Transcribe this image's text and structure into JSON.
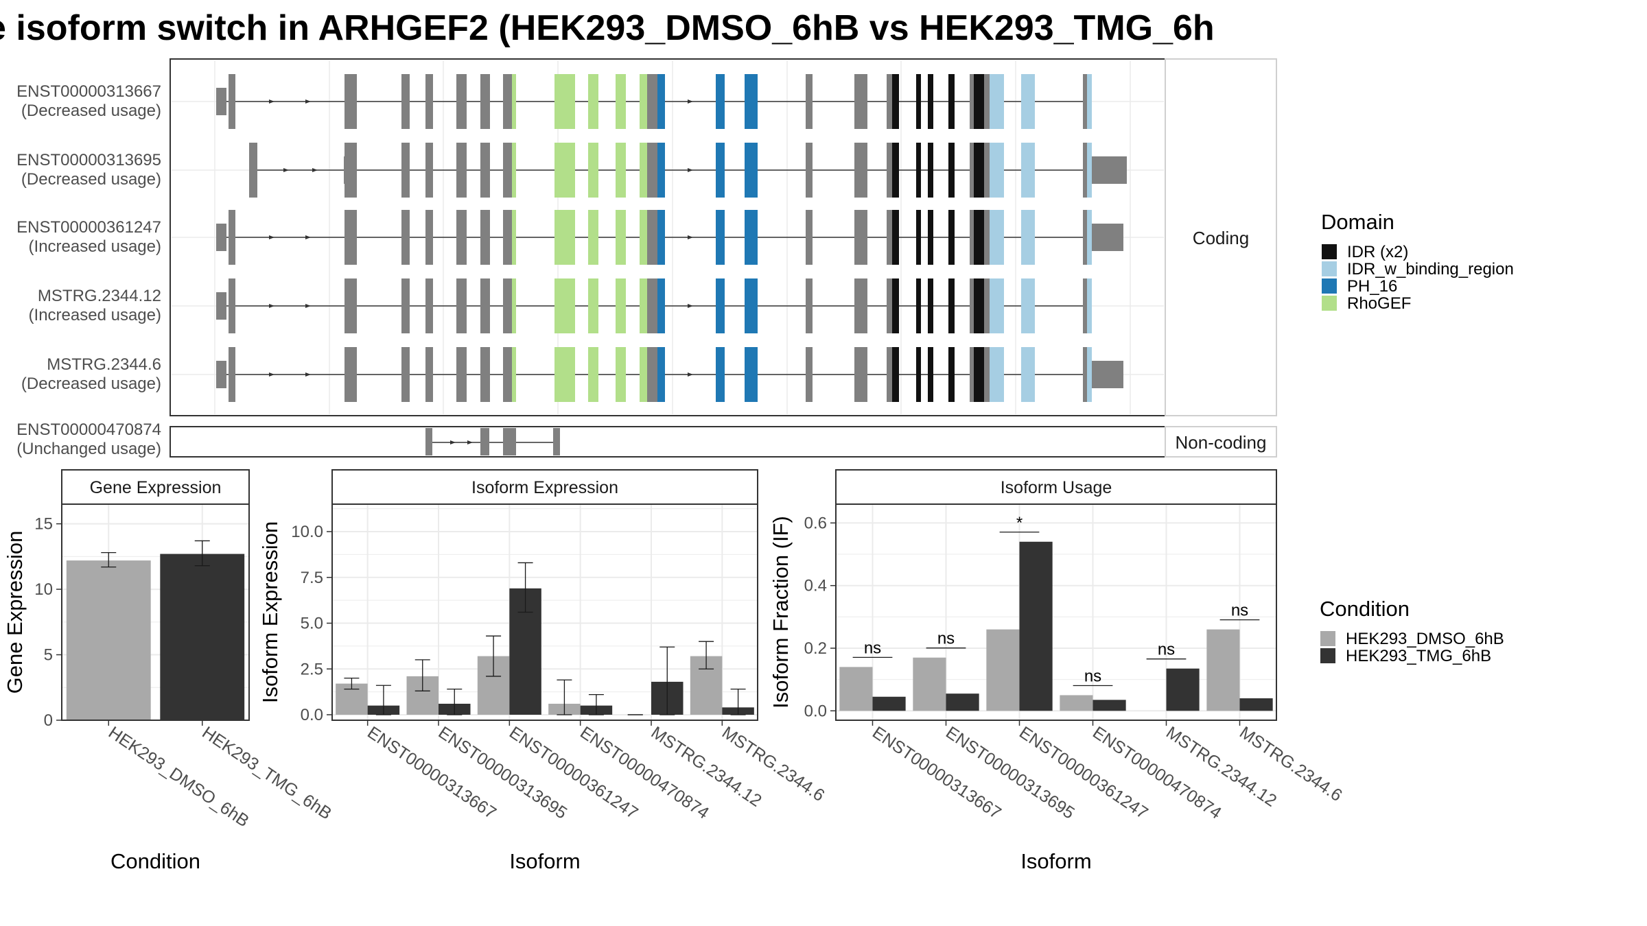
{
  "title": "e isoform switch in ARHGEF2 (HEK293_DMSO_6hB vs HEK293_TMG_6h",
  "colors": {
    "exon": "#808080",
    "IDR (x2)": "#111111",
    "IDR_w_binding_region": "#a6cee3",
    "PH_16": "#1f78b4",
    "RhoGEF": "#b2df8a",
    "HEK293_DMSO_6hB": "#a9a9a9",
    "HEK293_TMG_6hB": "#333333"
  },
  "transcripts": [
    {
      "id": "ENST00000313667",
      "usage": "(Decreased usage)",
      "group": "coding"
    },
    {
      "id": "ENST00000313695",
      "usage": "(Decreased usage)",
      "group": "coding"
    },
    {
      "id": "ENST00000361247",
      "usage": "(Increased usage)",
      "group": "coding"
    },
    {
      "id": "MSTRG.2344.12",
      "usage": "(Increased usage)",
      "group": "coding"
    },
    {
      "id": "MSTRG.2344.6",
      "usage": "(Decreased usage)",
      "group": "coding"
    },
    {
      "id": "ENST00000470874",
      "usage": "(Unchanged usage)",
      "group": "noncoding"
    }
  ],
  "strips": {
    "coding": "Coding",
    "noncoding": "Non-coding"
  },
  "legend_domain": {
    "title": "Domain",
    "items": [
      "IDR (x2)",
      "IDR_w_binding_region",
      "PH_16",
      "RhoGEF"
    ]
  },
  "legend_condition": {
    "title": "Condition",
    "items": [
      "HEK293_DMSO_6hB",
      "HEK293_TMG_6hB"
    ]
  },
  "chart_data": [
    {
      "type": "bar",
      "title": "Gene Expression",
      "xlabel": "Condition",
      "ylabel": "Gene Expression",
      "ylim": [
        0,
        16.5
      ],
      "yticks": [
        0,
        5,
        10,
        15
      ],
      "categories": [
        "HEK293_DMSO_6hB",
        "HEK293_TMG_6hB"
      ],
      "values": [
        12.2,
        12.7
      ],
      "errors": [
        [
          11.7,
          12.8
        ],
        [
          11.8,
          13.7
        ]
      ]
    },
    {
      "type": "bar",
      "title": "Isoform Expression",
      "xlabel": "Isoform",
      "ylabel": "Isoform Expression",
      "ylim": [
        -0.3,
        11.5
      ],
      "yticks": [
        0.0,
        2.5,
        5.0,
        7.5,
        10.0
      ],
      "categories": [
        "ENST00000313667",
        "ENST00000313695",
        "ENST00000361247",
        "ENST00000470874",
        "MSTRG.2344.12",
        "MSTRG.2344.6"
      ],
      "series": [
        {
          "name": "HEK293_DMSO_6hB",
          "values": [
            1.7,
            2.1,
            3.2,
            0.6,
            0.0,
            3.2
          ],
          "errors": [
            [
              1.4,
              2.0
            ],
            [
              1.3,
              3.0
            ],
            [
              2.1,
              4.3
            ],
            [
              0.0,
              1.9
            ],
            [
              0.0,
              0.0
            ],
            [
              2.5,
              4.0
            ]
          ]
        },
        {
          "name": "HEK293_TMG_6hB",
          "values": [
            0.5,
            0.6,
            6.9,
            0.5,
            1.8,
            0.4
          ],
          "errors": [
            [
              0.0,
              1.6
            ],
            [
              0.0,
              1.4
            ],
            [
              5.6,
              8.3
            ],
            [
              0.0,
              1.1
            ],
            [
              0.0,
              3.7
            ],
            [
              0.0,
              1.4
            ]
          ]
        }
      ]
    },
    {
      "type": "bar",
      "title": "Isoform Usage",
      "xlabel": "Isoform",
      "ylabel": "Isoform Fraction (IF)",
      "ylim": [
        -0.03,
        0.66
      ],
      "yticks": [
        0.0,
        0.2,
        0.4,
        0.6
      ],
      "categories": [
        "ENST00000313667",
        "ENST00000313695",
        "ENST00000361247",
        "ENST00000470874",
        "MSTRG.2344.12",
        "MSTRG.2344.6"
      ],
      "series": [
        {
          "name": "HEK293_DMSO_6hB",
          "values": [
            0.14,
            0.17,
            0.26,
            0.05,
            0.0,
            0.26
          ]
        },
        {
          "name": "HEK293_TMG_6hB",
          "values": [
            0.045,
            0.055,
            0.54,
            0.035,
            0.135,
            0.04
          ]
        }
      ],
      "significance": [
        "ns",
        "ns",
        "*",
        "ns",
        "ns",
        "ns"
      ]
    }
  ]
}
